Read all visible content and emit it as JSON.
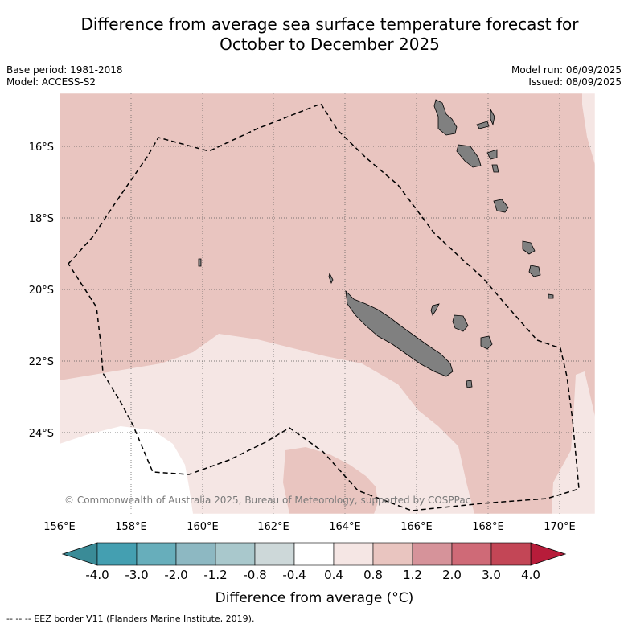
{
  "title_line1": "Difference from average sea surface temperature forecast for",
  "title_line2": "October to December 2025",
  "base_period": "Base period: 1981-2018",
  "model": "Model: ACCESS-S2",
  "model_run": "Model run: 06/09/2025",
  "issued": "Issued: 08/09/2025",
  "copyright": "© Commonwealth of Australia 2025, Bureau of Meteorology, supported by COSPPac",
  "footnote": "--  --  -- EEZ border V11 (Flanders Marine Institute, 2019).",
  "map": {
    "lon_range": [
      156,
      171
    ],
    "lat_range": [
      -26,
      -14.5
    ],
    "lon_ticks": [
      {
        "value": 156,
        "label": "156°E"
      },
      {
        "value": 158,
        "label": "158°E"
      },
      {
        "value": 160,
        "label": "160°E"
      },
      {
        "value": 162,
        "label": "162°E"
      },
      {
        "value": 164,
        "label": "164°E"
      },
      {
        "value": 166,
        "label": "166°E"
      },
      {
        "value": 168,
        "label": "168°E"
      },
      {
        "value": 170,
        "label": "170°E"
      }
    ],
    "lat_ticks": [
      {
        "value": -16,
        "label": "16°S"
      },
      {
        "value": -18,
        "label": "18°S"
      },
      {
        "value": -20,
        "label": "20°S"
      },
      {
        "value": -22,
        "label": "22°S"
      },
      {
        "value": -24,
        "label": "24°S"
      }
    ],
    "gridlines": true,
    "land_color": "#808080",
    "eez_line_style": "dashed"
  },
  "colorbar": {
    "title": "Difference from average (°C)",
    "boundary_labels": [
      "-4.0",
      "-3.0",
      "-2.0",
      "-1.2",
      "-0.8",
      "-0.4",
      "0.4",
      "0.8",
      "1.2",
      "2.0",
      "3.0",
      "4.0"
    ],
    "bin_colors": [
      "#449fb1",
      "#67aebb",
      "#8db8c2",
      "#a9c8cc",
      "#cdd8d9",
      "#ffffff",
      "#f5e6e4",
      "#e9c5c0",
      "#d6939a",
      "#cf6a77",
      "#c34656"
    ],
    "low_extend_color": "#3a8b97",
    "high_extend_color": "#b71c3a"
  }
}
